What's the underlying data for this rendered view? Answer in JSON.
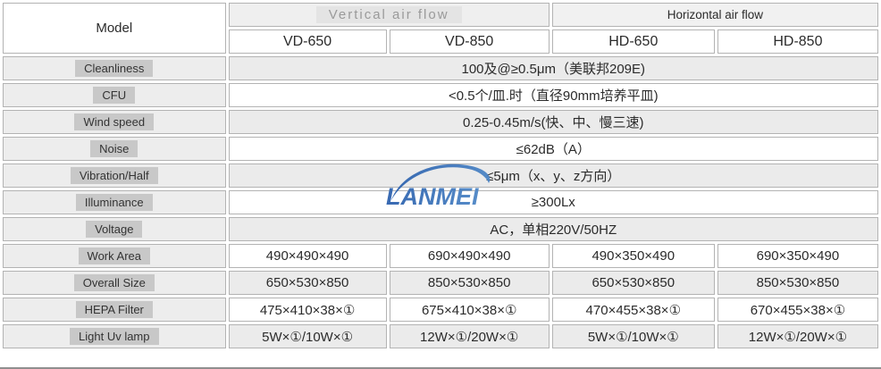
{
  "logo": {
    "text": "LANMEI",
    "color_dark": "#2e62ae",
    "color_light": "#4d86c6"
  },
  "table": {
    "model_header": "Model",
    "groups": [
      {
        "label": "Vertical air flow"
      },
      {
        "label": "Horizontal air flow"
      }
    ],
    "models": [
      "VD-650",
      "VD-850",
      "HD-650",
      "HD-850"
    ],
    "rows": [
      {
        "label": "Cleanliness",
        "value": "100及@≥0.5μm（美联邦209E)"
      },
      {
        "label": "CFU",
        "value": "<0.5个/皿.时（直径90mm培养平皿)"
      },
      {
        "label": "Wind speed",
        "value": "0.25-0.45m/s(快、中、慢三速)"
      },
      {
        "label": "Noise",
        "value": "≤62dB（A）"
      },
      {
        "label": "Vibration/Half",
        "value": "≤5μm（x、y、z方向）"
      },
      {
        "label": "Illuminance",
        "value": "≥300Lx"
      },
      {
        "label": "Voltage",
        "value": "AC，单相220V/50HZ"
      },
      {
        "label": "Work Area",
        "values": [
          "490×490×490",
          "690×490×490",
          "490×350×490",
          "690×350×490"
        ]
      },
      {
        "label": "Overall Size",
        "values": [
          "650×530×850",
          "850×530×850",
          "650×530×850",
          "850×530×850"
        ]
      },
      {
        "label": "HEPA Filter",
        "values": [
          "475×410×38×①",
          "675×410×38×①",
          "470×455×38×①",
          "670×455×38×①"
        ]
      },
      {
        "label": "Light Uv lamp",
        "values": [
          "5W×①/10W×①",
          "12W×①/20W×①",
          "5W×①/10W×①",
          "12W×①/20W×①"
        ]
      }
    ]
  },
  "colors": {
    "row_gray": "#ebebeb",
    "row_white": "#ffffff",
    "label_column_bg": "#ededed",
    "label_chip_bg": "#c8c8c8",
    "border": "#b3b3b3",
    "outer_border": "#8f8f8f",
    "vertical_header_text": "#9a9a9a",
    "logo_blue": "#3a6db6"
  }
}
